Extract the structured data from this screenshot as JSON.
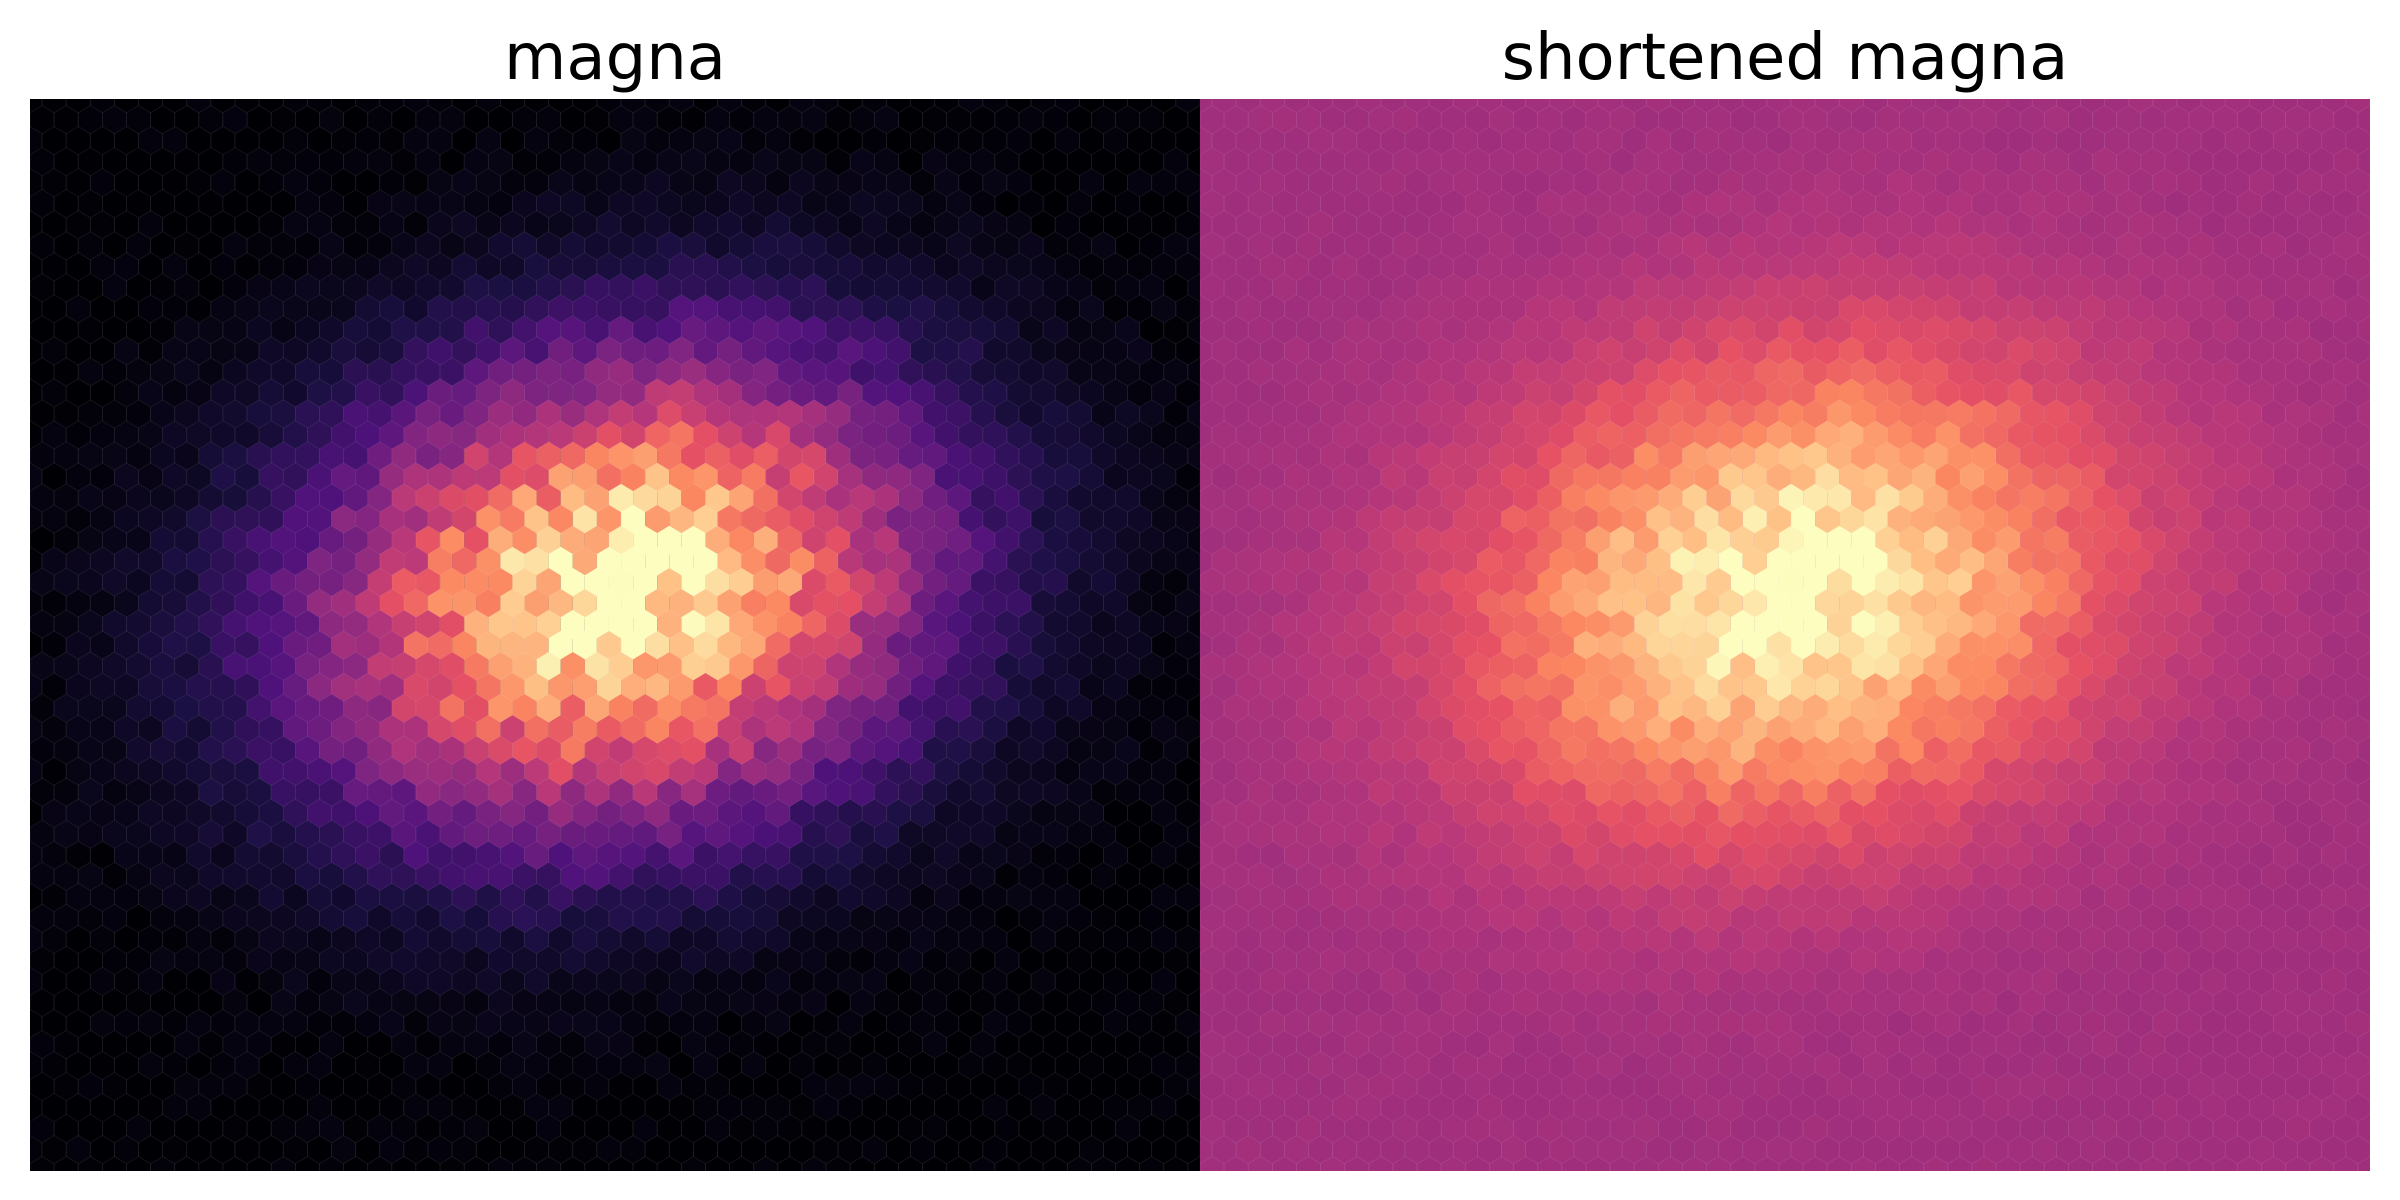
{
  "chart_data": [
    {
      "type": "heatmap",
      "subtype": "hexbin",
      "title": "magna",
      "colormap": "magma",
      "cmap_range": [
        0.0,
        1.0
      ],
      "axes_visible": false,
      "grid": false,
      "hex_grid": {
        "columns": 49,
        "rows": 52
      },
      "density_peak": {
        "col": 24.5,
        "row": 23.5
      },
      "density_spread": {
        "cols": 8.2,
        "rows": 7.2
      },
      "density_correlation": -0.15,
      "noise": 0.16
    },
    {
      "type": "heatmap",
      "subtype": "hexbin",
      "title": "shortened magna",
      "colormap": "magma",
      "cmap_range": [
        0.45,
        1.0
      ],
      "axes_visible": false,
      "grid": false,
      "hex_grid": {
        "columns": 49,
        "rows": 52
      },
      "density_peak": {
        "col": 24.5,
        "row": 23.5
      },
      "density_spread": {
        "cols": 8.2,
        "rows": 7.2
      },
      "density_correlation": -0.15,
      "noise": 0.16
    }
  ]
}
